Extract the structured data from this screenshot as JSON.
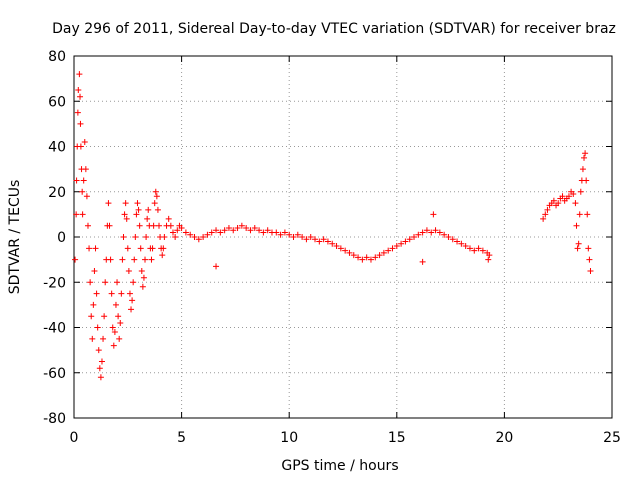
{
  "chart_data": {
    "type": "scatter",
    "title": "Day 296 of 2011, Sidereal Day-to-day VTEC variation (SDTVAR) for receiver braz",
    "xlabel": "GPS time / hours",
    "ylabel": "SDTVAR / TECUs",
    "xlim": [
      0,
      25
    ],
    "ylim": [
      -80,
      80
    ],
    "xticks": [
      0,
      5,
      10,
      15,
      20,
      25
    ],
    "yticks": [
      -80,
      -60,
      -40,
      -20,
      0,
      20,
      40,
      60,
      80
    ],
    "xtick_labels": [
      "0",
      "5",
      "10",
      "15",
      "20",
      "25"
    ],
    "ytick_labels": [
      "-80",
      "-60",
      "-40",
      "-20",
      "0",
      "20",
      "40",
      "60",
      "80"
    ],
    "grid": true,
    "marker": "+",
    "color": "#ff0000",
    "series": [
      {
        "name": "SDTVAR",
        "points": [
          [
            0.05,
            -10
          ],
          [
            0.1,
            10
          ],
          [
            0.12,
            25
          ],
          [
            0.15,
            40
          ],
          [
            0.18,
            55
          ],
          [
            0.2,
            65
          ],
          [
            0.25,
            72
          ],
          [
            0.28,
            62
          ],
          [
            0.3,
            50
          ],
          [
            0.32,
            40
          ],
          [
            0.35,
            30
          ],
          [
            0.38,
            20
          ],
          [
            0.4,
            10
          ],
          [
            0.45,
            25
          ],
          [
            0.5,
            42
          ],
          [
            0.55,
            30
          ],
          [
            0.6,
            18
          ],
          [
            0.65,
            5
          ],
          [
            0.7,
            -5
          ],
          [
            0.75,
            -20
          ],
          [
            0.8,
            -35
          ],
          [
            0.85,
            -45
          ],
          [
            0.9,
            -30
          ],
          [
            0.95,
            -15
          ],
          [
            1.0,
            -5
          ],
          [
            1.05,
            -25
          ],
          [
            1.1,
            -40
          ],
          [
            1.15,
            -50
          ],
          [
            1.2,
            -58
          ],
          [
            1.25,
            -62
          ],
          [
            1.3,
            -55
          ],
          [
            1.35,
            -45
          ],
          [
            1.4,
            -35
          ],
          [
            1.45,
            -20
          ],
          [
            1.5,
            -10
          ],
          [
            1.55,
            5
          ],
          [
            1.6,
            15
          ],
          [
            1.65,
            5
          ],
          [
            1.7,
            -10
          ],
          [
            1.75,
            -25
          ],
          [
            1.8,
            -40
          ],
          [
            1.85,
            -48
          ],
          [
            1.9,
            -42
          ],
          [
            1.95,
            -30
          ],
          [
            2.0,
            -20
          ],
          [
            2.05,
            -35
          ],
          [
            2.1,
            -45
          ],
          [
            2.15,
            -38
          ],
          [
            2.2,
            -25
          ],
          [
            2.25,
            -10
          ],
          [
            2.3,
            0
          ],
          [
            2.35,
            10
          ],
          [
            2.4,
            15
          ],
          [
            2.45,
            8
          ],
          [
            2.5,
            -5
          ],
          [
            2.55,
            -15
          ],
          [
            2.6,
            -25
          ],
          [
            2.65,
            -32
          ],
          [
            2.7,
            -28
          ],
          [
            2.75,
            -20
          ],
          [
            2.8,
            -10
          ],
          [
            2.85,
            0
          ],
          [
            2.9,
            10
          ],
          [
            2.95,
            15
          ],
          [
            3.0,
            12
          ],
          [
            3.05,
            5
          ],
          [
            3.1,
            -5
          ],
          [
            3.15,
            -15
          ],
          [
            3.2,
            -22
          ],
          [
            3.25,
            -18
          ],
          [
            3.3,
            -10
          ],
          [
            3.35,
            0
          ],
          [
            3.4,
            8
          ],
          [
            3.45,
            12
          ],
          [
            3.5,
            5
          ],
          [
            3.55,
            -5
          ],
          [
            3.6,
            -10
          ],
          [
            3.65,
            -5
          ],
          [
            3.7,
            5
          ],
          [
            3.75,
            15
          ],
          [
            3.8,
            20
          ],
          [
            3.85,
            18
          ],
          [
            3.9,
            12
          ],
          [
            3.95,
            5
          ],
          [
            4.0,
            0
          ],
          [
            4.05,
            -5
          ],
          [
            4.1,
            -8
          ],
          [
            4.15,
            -5
          ],
          [
            4.2,
            0
          ],
          [
            4.3,
            5
          ],
          [
            4.4,
            8
          ],
          [
            4.5,
            5
          ],
          [
            4.6,
            2
          ],
          [
            4.7,
            0
          ],
          [
            4.8,
            3
          ],
          [
            4.9,
            5
          ],
          [
            5.0,
            4
          ],
          [
            5.2,
            2
          ],
          [
            5.4,
            1
          ],
          [
            5.6,
            0
          ],
          [
            5.8,
            -1
          ],
          [
            6.0,
            0
          ],
          [
            6.2,
            1
          ],
          [
            6.4,
            2
          ],
          [
            6.6,
            3
          ],
          [
            6.8,
            2
          ],
          [
            7.0,
            3
          ],
          [
            7.2,
            4
          ],
          [
            7.4,
            3
          ],
          [
            7.6,
            4
          ],
          [
            7.8,
            5
          ],
          [
            8.0,
            4
          ],
          [
            8.2,
            3
          ],
          [
            8.4,
            4
          ],
          [
            8.6,
            3
          ],
          [
            8.8,
            2
          ],
          [
            9.0,
            3
          ],
          [
            9.2,
            2
          ],
          [
            9.4,
            2
          ],
          [
            9.6,
            1
          ],
          [
            9.8,
            2
          ],
          [
            10.0,
            1
          ],
          [
            10.2,
            0
          ],
          [
            10.4,
            1
          ],
          [
            10.6,
            0
          ],
          [
            10.8,
            -1
          ],
          [
            11.0,
            0
          ],
          [
            11.2,
            -1
          ],
          [
            11.4,
            -2
          ],
          [
            11.6,
            -1
          ],
          [
            11.8,
            -2
          ],
          [
            12.0,
            -3
          ],
          [
            12.2,
            -4
          ],
          [
            12.4,
            -5
          ],
          [
            12.6,
            -6
          ],
          [
            12.8,
            -7
          ],
          [
            13.0,
            -8
          ],
          [
            13.2,
            -9
          ],
          [
            13.4,
            -10
          ],
          [
            13.6,
            -9
          ],
          [
            13.8,
            -10
          ],
          [
            14.0,
            -9
          ],
          [
            14.2,
            -8
          ],
          [
            14.4,
            -7
          ],
          [
            14.6,
            -6
          ],
          [
            14.8,
            -5
          ],
          [
            15.0,
            -4
          ],
          [
            15.2,
            -3
          ],
          [
            15.4,
            -2
          ],
          [
            15.6,
            -1
          ],
          [
            15.8,
            0
          ],
          [
            16.0,
            1
          ],
          [
            16.2,
            2
          ],
          [
            16.4,
            3
          ],
          [
            16.6,
            2
          ],
          [
            16.8,
            3
          ],
          [
            17.0,
            2
          ],
          [
            17.2,
            1
          ],
          [
            17.4,
            0
          ],
          [
            17.6,
            -1
          ],
          [
            17.8,
            -2
          ],
          [
            18.0,
            -3
          ],
          [
            18.2,
            -4
          ],
          [
            18.4,
            -5
          ],
          [
            18.6,
            -6
          ],
          [
            18.8,
            -5
          ],
          [
            19.0,
            -6
          ],
          [
            19.2,
            -7
          ],
          [
            19.3,
            -8
          ],
          [
            6.6,
            -13
          ],
          [
            16.7,
            10
          ],
          [
            16.2,
            -11
          ],
          [
            19.25,
            -10
          ],
          [
            21.8,
            8
          ],
          [
            21.9,
            10
          ],
          [
            22.0,
            12
          ],
          [
            22.1,
            14
          ],
          [
            22.2,
            15
          ],
          [
            22.3,
            16
          ],
          [
            22.4,
            14
          ],
          [
            22.5,
            15
          ],
          [
            22.6,
            17
          ],
          [
            22.7,
            18
          ],
          [
            22.8,
            16
          ],
          [
            22.9,
            17
          ],
          [
            23.0,
            18
          ],
          [
            23.1,
            20
          ],
          [
            23.2,
            19
          ],
          [
            23.3,
            15
          ],
          [
            23.35,
            5
          ],
          [
            23.4,
            -5
          ],
          [
            23.45,
            -3
          ],
          [
            23.5,
            10
          ],
          [
            23.55,
            20
          ],
          [
            23.6,
            25
          ],
          [
            23.65,
            30
          ],
          [
            23.7,
            35
          ],
          [
            23.75,
            37
          ],
          [
            23.8,
            25
          ],
          [
            23.85,
            10
          ],
          [
            23.9,
            -5
          ],
          [
            23.95,
            -10
          ],
          [
            24.0,
            -15
          ]
        ]
      }
    ]
  }
}
